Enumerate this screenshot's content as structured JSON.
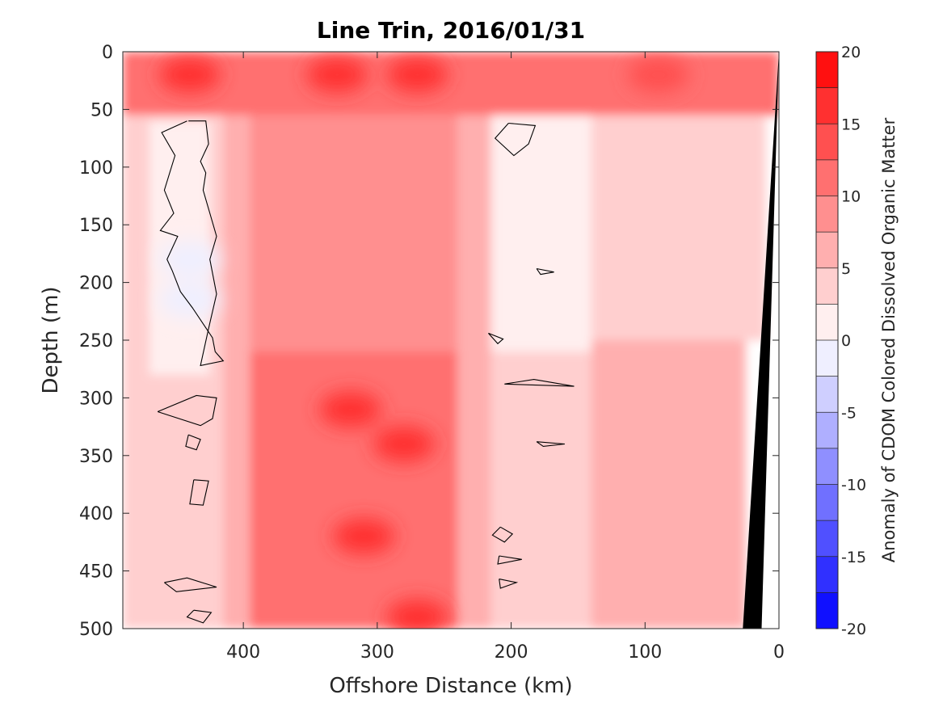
{
  "chart_data": {
    "type": "heatmap",
    "title": "Line Trin, 2016/01/31",
    "xlabel": "Offshore Distance (km)",
    "ylabel": "Depth (m)",
    "colorbar_label": "Anomaly of CDOM Colored Dissolved Organic Matter",
    "x_reversed": true,
    "y_reversed": true,
    "xlim": [
      490,
      0
    ],
    "ylim": [
      0,
      500
    ],
    "x_ticks": [
      400,
      300,
      200,
      100,
      0
    ],
    "y_ticks": [
      0,
      50,
      100,
      150,
      200,
      250,
      300,
      350,
      400,
      450,
      500
    ],
    "colorbar_ticks": [
      20,
      15,
      10,
      5,
      0,
      -5,
      -10,
      -15,
      -20
    ],
    "clim": [
      -20,
      20
    ],
    "colormap": "blue-white-red",
    "zero_contour_color": "#000000",
    "bathymetry_color": "#000000",
    "zones": [
      {
        "x_from": 490,
        "x_to": 0,
        "depth_from": 0,
        "depth_to": 55,
        "value": 12
      },
      {
        "x_from": 490,
        "x_to": 415,
        "depth_from": 55,
        "depth_to": 500,
        "value": 3
      },
      {
        "x_from": 470,
        "x_to": 425,
        "depth_from": 60,
        "depth_to": 280,
        "value": 0
      },
      {
        "x_from": 415,
        "x_to": 395,
        "depth_from": 55,
        "depth_to": 500,
        "value": 6
      },
      {
        "x_from": 395,
        "x_to": 240,
        "depth_from": 55,
        "depth_to": 260,
        "value": 9
      },
      {
        "x_from": 395,
        "x_to": 240,
        "depth_from": 260,
        "depth_to": 500,
        "value": 12
      },
      {
        "x_from": 240,
        "x_to": 215,
        "depth_from": 55,
        "depth_to": 500,
        "value": 6
      },
      {
        "x_from": 215,
        "x_to": 140,
        "depth_from": 55,
        "depth_to": 260,
        "value": 0
      },
      {
        "x_from": 215,
        "x_to": 140,
        "depth_from": 260,
        "depth_to": 500,
        "value": 3
      },
      {
        "x_from": 140,
        "x_to": 10,
        "depth_from": 55,
        "depth_to": 250,
        "value": 3
      },
      {
        "x_from": 140,
        "x_to": 25,
        "depth_from": 250,
        "depth_to": 500,
        "value": 5
      }
    ],
    "hotspots": [
      {
        "x": 440,
        "depth": 20,
        "value": 17
      },
      {
        "x": 330,
        "depth": 20,
        "value": 17
      },
      {
        "x": 270,
        "depth": 20,
        "value": 16
      },
      {
        "x": 90,
        "depth": 20,
        "value": 13
      },
      {
        "x": 320,
        "depth": 310,
        "value": 16
      },
      {
        "x": 280,
        "depth": 340,
        "value": 15
      },
      {
        "x": 310,
        "depth": 420,
        "value": 15
      },
      {
        "x": 270,
        "depth": 490,
        "value": 15
      },
      {
        "x": 440,
        "depth": 180,
        "value": -2
      },
      {
        "x": 440,
        "depth": 215,
        "value": -2
      }
    ],
    "zero_contours": [
      {
        "x": [
          441,
          428,
          426,
          432,
          428,
          430,
          425,
          420,
          425,
          420,
          426,
          432,
          415,
          421,
          423,
          438,
          447,
          453,
          457,
          449,
          462,
          452,
          459,
          455,
          451,
          461,
          442
        ],
        "depth": [
          60,
          60,
          80,
          95,
          105,
          120,
          140,
          160,
          180,
          210,
          240,
          272,
          268,
          260,
          248,
          222,
          208,
          190,
          180,
          160,
          155,
          140,
          120,
          105,
          90,
          70,
          60
        ]
      },
      {
        "x": [
          202,
          182,
          187,
          198,
          212,
          202
        ],
        "depth": [
          62,
          64,
          80,
          90,
          75,
          62
        ]
      },
      {
        "x": [
          464,
          435,
          420,
          423,
          432,
          464
        ],
        "depth": [
          312,
          298,
          300,
          318,
          324,
          312
        ]
      },
      {
        "x": [
          205,
          153,
          183,
          205
        ],
        "depth": [
          288,
          290,
          284,
          288
        ]
      },
      {
        "x": [
          437,
          426,
          430,
          440,
          437
        ],
        "depth": [
          371,
          372,
          393,
          392,
          371
        ]
      },
      {
        "x": [
          459,
          442,
          420,
          450,
          459
        ],
        "depth": [
          460,
          456,
          464,
          468,
          460
        ]
      },
      {
        "x": [
          437,
          424,
          430,
          442,
          437
        ],
        "depth": [
          484,
          486,
          495,
          490,
          484
        ]
      },
      {
        "x": [
          441,
          432,
          435,
          443,
          441
        ],
        "depth": [
          332,
          336,
          345,
          342,
          332
        ]
      },
      {
        "x": [
          208,
          199,
          205,
          214,
          208
        ],
        "depth": [
          412,
          418,
          425,
          419,
          412
        ]
      },
      {
        "x": [
          209,
          192,
          210,
          209
        ],
        "depth": [
          437,
          440,
          444,
          437
        ]
      },
      {
        "x": [
          209,
          196,
          208,
          209
        ],
        "depth": [
          457,
          460,
          465,
          457
        ]
      },
      {
        "x": [
          217,
          206,
          210,
          217
        ],
        "depth": [
          244,
          249,
          253,
          244
        ]
      },
      {
        "x": [
          181,
          168,
          178,
          181
        ],
        "depth": [
          188,
          191,
          193,
          188
        ]
      },
      {
        "x": [
          181,
          160,
          176,
          181
        ],
        "depth": [
          338,
          340,
          342,
          338
        ]
      }
    ],
    "bathymetry": {
      "x": [
        0,
        27,
        13,
        0
      ],
      "depth": [
        0,
        500,
        500,
        0
      ]
    }
  }
}
